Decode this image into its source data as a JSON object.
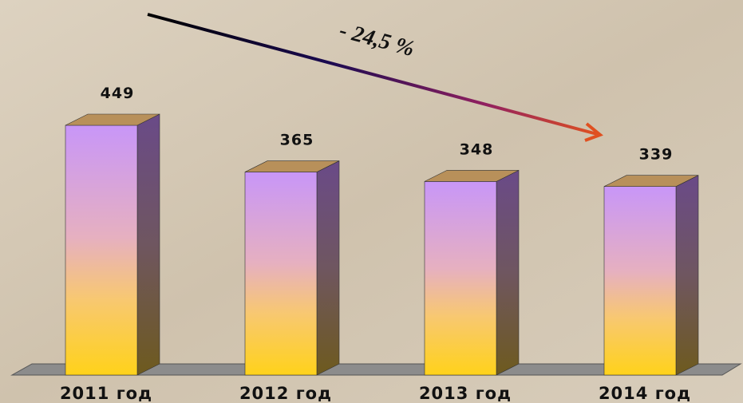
{
  "chart_data": {
    "type": "bar3d",
    "categories": [
      "2011 год",
      "2012 год",
      "2013 год",
      "2014 год"
    ],
    "values": [
      449,
      365,
      348,
      339
    ],
    "annotation": "- 24,5 %"
  }
}
